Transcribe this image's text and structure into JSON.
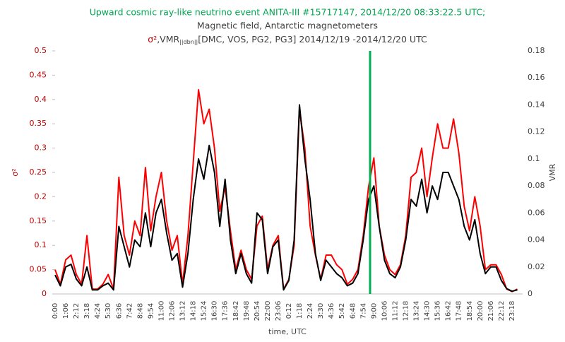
{
  "chart_data": {
    "type": "line",
    "title": "Upward cosmic ray-like neutrino event ANITA-III #15717147,  2014/12/20  08:33:22.5  UTC;",
    "subtitle": "Magnetic field, Antarctic magnetometers",
    "subtitle2": {
      "symbol": "σ²",
      "text1": ",VMR",
      "subscript": "||dbn||",
      "text2": "[DMC, VOS, PG2, PG3]  2014/12/19  -2014/12/20 UTC"
    },
    "x_label": "time, UTC",
    "y_label": "σ²",
    "y2_label": "VMR",
    "categories": [
      "0:00",
      null,
      "1:06",
      null,
      "2:12",
      null,
      "3:18",
      null,
      "4:24",
      null,
      "5:30",
      null,
      "6:36",
      null,
      "7:42",
      null,
      "8:48",
      null,
      "9:54",
      null,
      "11:00",
      null,
      "12:06",
      null,
      "13:12",
      null,
      "14:18",
      null,
      "15:24",
      null,
      "16:30",
      null,
      "17:36",
      null,
      "18:42",
      null,
      "19:48",
      null,
      "20:54",
      null,
      "22:00",
      null,
      "23:06",
      null,
      "0:12",
      null,
      "1:18",
      null,
      "2:24",
      null,
      "3:30",
      null,
      "4:36",
      null,
      "5:42",
      null,
      "6:48",
      null,
      "7:54",
      null,
      "9:00",
      null,
      "10:06",
      null,
      "11:12",
      null,
      "12:18",
      null,
      "13:24",
      null,
      "14:30",
      null,
      "15:36",
      null,
      "16:42",
      null,
      "17:48",
      null,
      "18:54",
      null,
      "20:00",
      null,
      "21:06",
      null,
      "22:12",
      null,
      "23:18",
      null
    ],
    "series": [
      {
        "name": "σ²",
        "color": "#ff0000",
        "values": [
          0.05,
          0.02,
          0.07,
          0.08,
          0.04,
          0.02,
          0.12,
          0.01,
          0.01,
          0.02,
          0.04,
          0.01,
          0.24,
          0.12,
          0.08,
          0.15,
          0.12,
          0.26,
          0.13,
          0.2,
          0.25,
          0.15,
          0.09,
          0.12,
          0.02,
          0.12,
          0.27,
          0.42,
          0.35,
          0.38,
          0.3,
          0.17,
          0.22,
          0.13,
          0.05,
          0.09,
          0.05,
          0.03,
          0.14,
          0.16,
          0.05,
          0.1,
          0.12,
          0.01,
          0.03,
          0.1,
          0.38,
          0.3,
          0.14,
          0.08,
          0.03,
          0.08,
          0.08,
          0.06,
          0.05,
          0.02,
          0.03,
          0.05,
          0.12,
          0.22,
          0.28,
          0.14,
          0.08,
          0.05,
          0.04,
          0.06,
          0.12,
          0.24,
          0.25,
          0.3,
          0.2,
          0.28,
          0.35,
          0.3,
          0.3,
          0.36,
          0.29,
          0.18,
          0.13,
          0.2,
          0.14,
          0.05,
          0.06,
          0.06,
          0.04,
          0.01,
          0.005,
          0.01
        ]
      },
      {
        "name": "VMR",
        "color": "#000000",
        "axis": "y2",
        "values": [
          0.014,
          0.006,
          0.02,
          0.022,
          0.011,
          0.006,
          0.02,
          0.003,
          0.003,
          0.006,
          0.008,
          0.003,
          0.05,
          0.035,
          0.02,
          0.04,
          0.035,
          0.06,
          0.035,
          0.06,
          0.07,
          0.045,
          0.025,
          0.03,
          0.005,
          0.03,
          0.07,
          0.1,
          0.085,
          0.11,
          0.09,
          0.05,
          0.085,
          0.04,
          0.015,
          0.03,
          0.015,
          0.008,
          0.06,
          0.055,
          0.015,
          0.035,
          0.04,
          0.003,
          0.01,
          0.04,
          0.14,
          0.1,
          0.07,
          0.03,
          0.01,
          0.025,
          0.02,
          0.015,
          0.012,
          0.006,
          0.008,
          0.015,
          0.04,
          0.07,
          0.08,
          0.05,
          0.025,
          0.015,
          0.012,
          0.02,
          0.04,
          0.07,
          0.065,
          0.085,
          0.06,
          0.08,
          0.07,
          0.09,
          0.09,
          0.08,
          0.07,
          0.05,
          0.04,
          0.055,
          0.03,
          0.015,
          0.02,
          0.02,
          0.01,
          0.004,
          0.002,
          0.003
        ]
      }
    ],
    "ylim": [
      0,
      0.5
    ],
    "yticks": [
      0,
      0.05,
      0.1,
      0.15,
      0.2,
      0.25,
      0.3,
      0.35,
      0.4,
      0.45,
      0.5
    ],
    "y2lim": [
      0,
      0.18
    ],
    "y2ticks": [
      0,
      0.02,
      0.04,
      0.06,
      0.08,
      0.1,
      0.12,
      0.14,
      0.16,
      0.18
    ],
    "title_color": "#00a651",
    "y_color": "#c00000"
  }
}
